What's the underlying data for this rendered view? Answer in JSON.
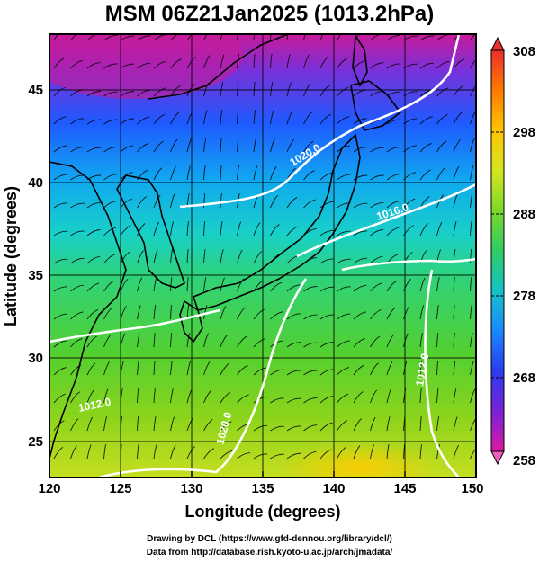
{
  "title": "MSM 06Z21Jan2025 (1013.2hPa)",
  "x_axis": {
    "label": "Longitude (degrees)",
    "min": 120,
    "max": 150,
    "ticks": [
      "120",
      "125",
      "130",
      "135",
      "140",
      "145",
      "150"
    ]
  },
  "y_axis": {
    "label": "Latitude  (degrees)",
    "min": 22.5,
    "max": 48,
    "ticks": [
      "25",
      "30",
      "35",
      "40",
      "45"
    ]
  },
  "colorbar": {
    "min": 258,
    "max": 308,
    "labels": [
      "308",
      "298",
      "288",
      "278",
      "268",
      "258"
    ],
    "colors": [
      "#d9008c",
      "#8a2be2",
      "#1e3cff",
      "#00b4ff",
      "#3cd46e",
      "#64dc1e",
      "#c8e628",
      "#ffc800",
      "#ff6400",
      "#f03c3c"
    ]
  },
  "contours": [
    {
      "label": "1020.0"
    },
    {
      "label": "1016.0"
    },
    {
      "label": "1020.0"
    },
    {
      "label": "1012.0"
    },
    {
      "label": "1012.0"
    }
  ],
  "credits": {
    "line1": "Drawing by DCL (https://www.gfd-dennou.org/library/dcl/)",
    "line2": "Data from http://database.rish.kyoto-u.ac.jp/arch/jmadata/"
  }
}
